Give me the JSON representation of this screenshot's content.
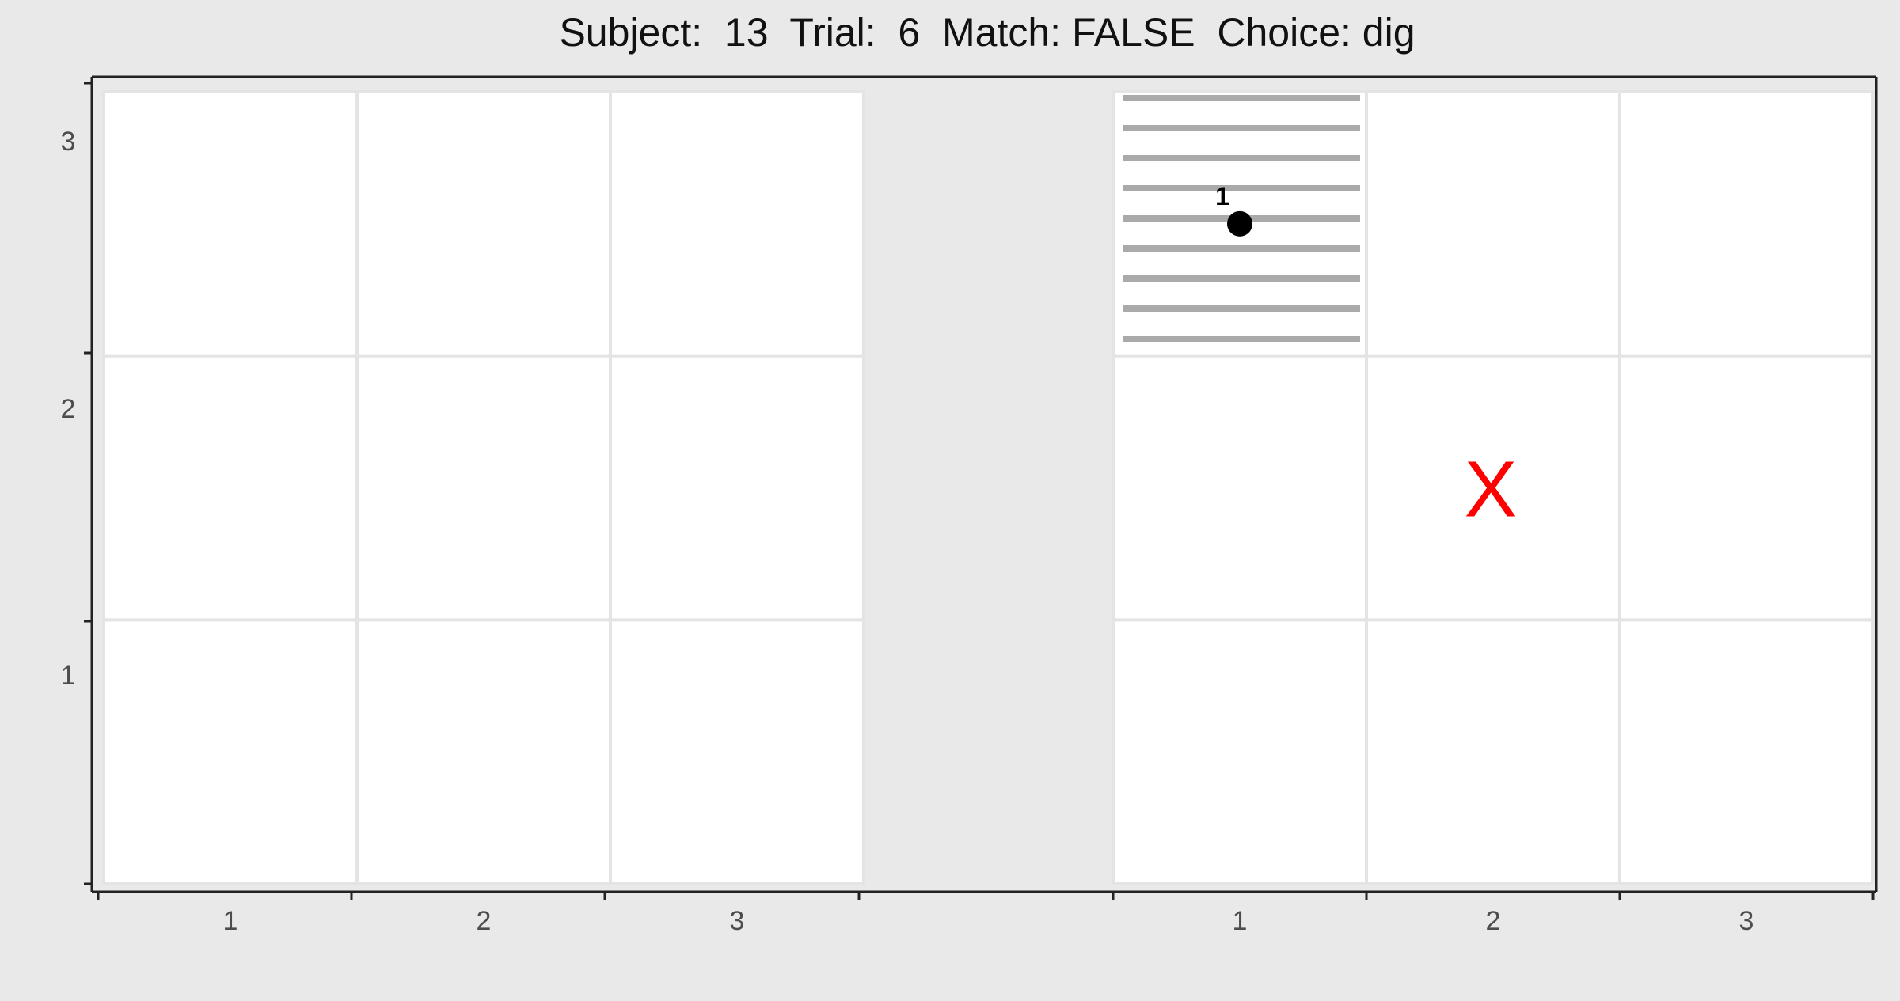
{
  "title": "Subject:  13  Trial:  6  Match: FALSE  Choice: dig",
  "colors": {
    "background": "#e9e9e9",
    "panel": "#ffffff",
    "grid": "#e4e4e4",
    "axis": "#222222",
    "stripe": "#aaaaaa",
    "marker": "#000000",
    "x_mark": "#ff0000"
  },
  "chart_data": {
    "type": "scatter",
    "y_ticks": [
      "1",
      "2",
      "3"
    ],
    "grids": [
      {
        "x_ticks": [
          "1",
          "2",
          "3"
        ],
        "cells": [],
        "points": [],
        "marks": []
      },
      {
        "x_ticks": [
          "1",
          "2",
          "3"
        ],
        "cells": [
          {
            "col": 1,
            "row": 3,
            "pattern": "horizontal-stripes"
          }
        ],
        "points": [
          {
            "x": 1.0,
            "y": 3.0,
            "label": "1"
          }
        ],
        "marks": [
          {
            "x": 2.0,
            "y": 2.0,
            "symbol": "X"
          }
        ]
      }
    ]
  }
}
